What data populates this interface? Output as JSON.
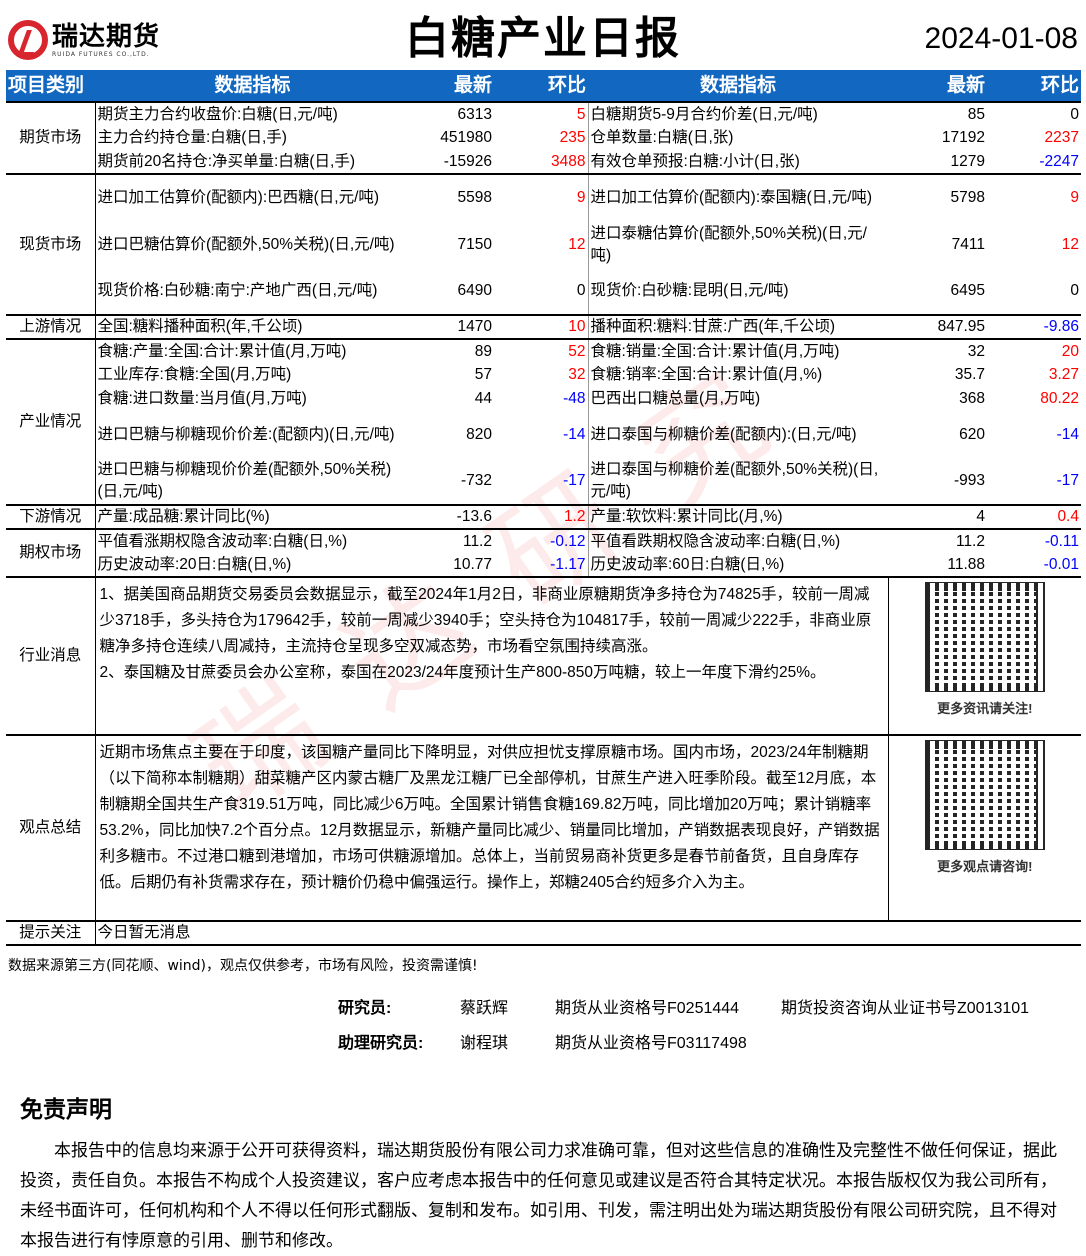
{
  "header": {
    "logo_cn": "瑞达期货",
    "logo_en": "RUIDA FUTURES CO.,LTD.",
    "title": "白糖产业日报",
    "date": "2024-01-08"
  },
  "columns": [
    "项目类别",
    "数据指标",
    "最新",
    "环比",
    "数据指标",
    "最新",
    "环比"
  ],
  "colors": {
    "header_bg": "#1268c0",
    "up": "#ff0000",
    "down": "#0000ff"
  },
  "sections": [
    {
      "category": "期货市场",
      "rows": [
        {
          "tall": false,
          "l": [
            "期货主力合约收盘价:白糖(日,元/吨)",
            "6313",
            "5"
          ],
          "r": [
            "白糖期货5-9月合约价差(日,元/吨)",
            "85",
            "0"
          ]
        },
        {
          "tall": false,
          "l": [
            "主力合约持仓量:白糖(日,手)",
            "451980",
            "235"
          ],
          "r": [
            "仓单数量:白糖(日,张)",
            "17192",
            "2237"
          ]
        },
        {
          "tall": false,
          "l": [
            "期货前20名持仓:净买单量:白糖(日,手)",
            "-15926",
            "3488"
          ],
          "r": [
            "有效仓单预报:白糖:小计(日,张)",
            "1279",
            "-2247"
          ]
        }
      ]
    },
    {
      "category": "现货市场",
      "rows": [
        {
          "tall": true,
          "l": [
            "进口加工估算价(配额内):巴西糖(日,元/吨)",
            "5598",
            "9"
          ],
          "r": [
            "进口加工估算价(配额内):泰国糖(日,元/吨)",
            "5798",
            "9"
          ]
        },
        {
          "tall": true,
          "l": [
            "进口巴糖估算价(配额外,50%关税)(日,元/吨)",
            "7150",
            "12"
          ],
          "r": [
            "进口泰糖估算价(配额外,50%关税)(日,元/吨)",
            "7411",
            "12"
          ]
        },
        {
          "tall": true,
          "l": [
            "现货价格:白砂糖:南宁:产地广西(日,元/吨)",
            "6490",
            "0"
          ],
          "r": [
            "现货价:白砂糖:昆明(日,元/吨)",
            "6495",
            "0"
          ]
        }
      ]
    },
    {
      "category": "上游情况",
      "rows": [
        {
          "tall": false,
          "l": [
            "全国:糖料播种面积(年,千公顷)",
            "1470",
            "10"
          ],
          "r": [
            "播种面积:糖料:甘蔗:广西(年,千公顷)",
            "847.95",
            "-9.86"
          ]
        }
      ]
    },
    {
      "category": "产业情况",
      "rows": [
        {
          "tall": false,
          "l": [
            "食糖:产量:全国:合计:累计值(月,万吨)",
            "89",
            "52"
          ],
          "r": [
            "食糖:销量:全国:合计:累计值(月,万吨)",
            "32",
            "20"
          ]
        },
        {
          "tall": false,
          "l": [
            "工业库存:食糖:全国(月,万吨)",
            "57",
            "32"
          ],
          "r": [
            "食糖:销率:全国:合计:累计值(月,%)",
            "35.7",
            "3.27"
          ]
        },
        {
          "tall": false,
          "l": [
            "食糖:进口数量:当月值(月,万吨)",
            "44",
            "-48"
          ],
          "r": [
            "巴西出口糖总量(月,万吨)",
            "368",
            "80.22"
          ]
        },
        {
          "tall": true,
          "l": [
            "进口巴糖与柳糖现价价差:(配额内)(日,元/吨)",
            "820",
            "-14"
          ],
          "r": [
            "进口泰国与柳糖价差(配额内):(日,元/吨)",
            "620",
            "-14"
          ]
        },
        {
          "tall": true,
          "l": [
            "进口巴糖与柳糖现价价差(配额外,50%关税)(日,元/吨)",
            "-732",
            "-17"
          ],
          "r": [
            "进口泰国与柳糖价差(配额外,50%关税)(日,元/吨)",
            "-993",
            "-17"
          ]
        }
      ]
    },
    {
      "category": "下游情况",
      "rows": [
        {
          "tall": false,
          "l": [
            "产量:成品糖:累计同比(%)",
            "-13.6",
            "1.2"
          ],
          "r": [
            "产量:软饮料:累计同比(月,%)",
            "4",
            "0.4"
          ]
        }
      ]
    },
    {
      "category": "期权市场",
      "rows": [
        {
          "tall": false,
          "l": [
            "平值看涨期权隐含波动率:白糖(日,%)",
            "11.2",
            "-0.12"
          ],
          "r": [
            "平值看跌期权隐含波动率:白糖(日,%)",
            "11.2",
            "-0.11"
          ]
        },
        {
          "tall": false,
          "l": [
            "历史波动率:20日:白糖(日,%)",
            "10.77",
            "-1.17"
          ],
          "r": [
            "历史波动率:60日:白糖(日,%)",
            "11.88",
            "-0.01"
          ]
        }
      ]
    }
  ],
  "news": {
    "category": "行业消息",
    "lines": [
      "1、据美国商品期货交易委员会数据显示，截至2024年1月2日，非商业原糖期货净多持仓为74825手，较前一周减少3718手，多头持仓为179642手，较前一周减少3940手；空头持仓为104817手，较前一周减少222手，非商业原糖净多持仓连续八周减持，主流持仓呈现多空双减态势，市场看空氛围持续高涨。",
      "2、泰国糖及甘蔗委员会办公室称，泰国在2023/24年度预计生产800-850万吨糖，较上一年度下滑约25%。"
    ],
    "qr_caption": "更多资讯请关注!"
  },
  "view": {
    "category": "观点总结",
    "text": "近期市场焦点主要在于印度，该国糖产量同比下降明显，对供应担忧支撑原糖市场。国内市场，2023/24年制糖期（以下简称本制糖期）甜菜糖产区内蒙古糖厂及黑龙江糖厂已全部停机，甘蔗生产进入旺季阶段。截至12月底，本制糖期全国共生产食319.51万吨，同比减少6万吨。全国累计销售食糖169.82万吨，同比增加20万吨；累计销糖率53.2%，同比加快7.2个百分点。12月数据显示，新糖产量同比减少、销量同比增加，产销数据表现良好，产销数据利多糖市。不过港口糖到港增加，市场可供糖源增加。总体上，当前贸易商补货更多是春节前备货，且自身库存低。后期仍有补货需求存在，预计糖价仍稳中偏强运行。操作上，郑糖2405合约短多介入为主。",
    "qr_caption": "更多观点请咨询!"
  },
  "tips": {
    "category": "提示关注",
    "text": "今日暂无消息"
  },
  "source_note": "数据来源第三方(同花顺、wind)，观点仅供参考，市场有风险，投资需谨慎!",
  "staff": [
    {
      "role": "研究员:",
      "name": "蔡跃辉",
      "cert1": "期货从业资格号F0251444",
      "cert2": "期货投资咨询从业证书号Z0013101"
    },
    {
      "role": "助理研究员:",
      "name": "谢程琪",
      "cert1": "期货从业资格号F03117498",
      "cert2": ""
    }
  ],
  "disclaimer": {
    "title": "免责声明",
    "text": "本报告中的信息均来源于公开可获得资料，瑞达期货股份有限公司力求准确可靠，但对这些信息的准确性及完整性不做任何保证，据此投资，责任自负。本报告不构成个人投资建议，客户应考虑本报告中的任何意见或建议是否符合其特定状况。本报告版权仅为我公司所有，未经书面许可，任何机构和个人不得以任何形式翻版、复制和发布。如引用、刊发，需注明出处为瑞达期货股份有限公司研究院，且不得对本报告进行有悖原意的引用、删节和修改。"
  },
  "watermark": "瑞达研究"
}
